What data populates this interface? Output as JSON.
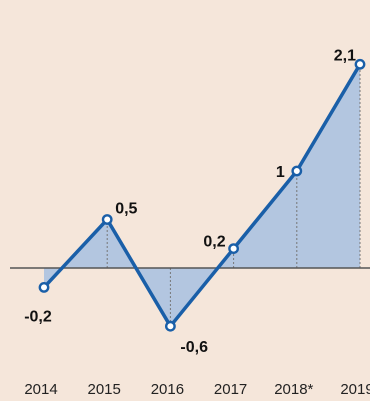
{
  "chart_data": {
    "type": "area",
    "categories": [
      "2014",
      "2015",
      "2016",
      "2017",
      "2018*",
      "2019"
    ],
    "values": [
      -0.2,
      0.5,
      -0.6,
      0.2,
      1,
      2.1
    ],
    "data_labels": [
      "-0,2",
      "0,5",
      "-0,6",
      "0,2",
      "1",
      "2,1"
    ],
    "title": "",
    "xlabel": "",
    "ylabel": "",
    "ylim": [
      -0.9,
      2.3
    ],
    "grid": false,
    "colors": {
      "background": "#f5e6da",
      "line": "#1a5fa8",
      "area": "#b3c6e0",
      "zero_line": "#555555",
      "marker_fill": "#ffffff",
      "dotted_guides": "#777777"
    }
  }
}
